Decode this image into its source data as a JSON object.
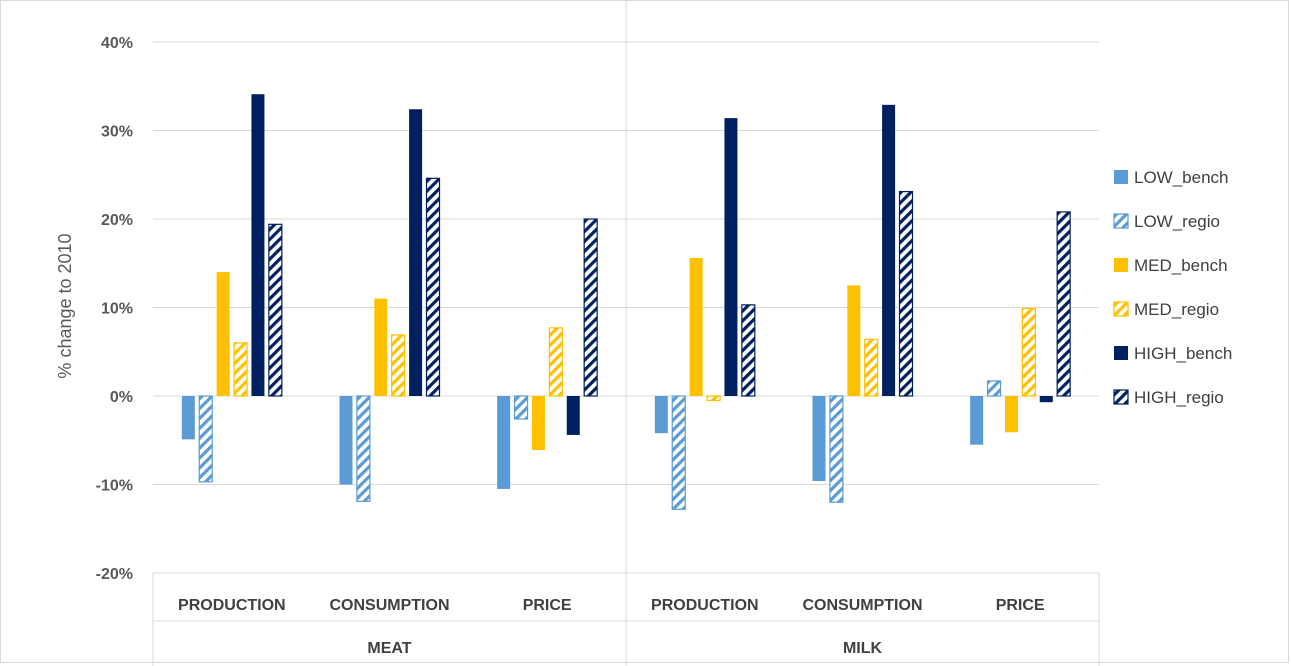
{
  "chart_data": {
    "type": "bar",
    "ylabel": "% change to 2010",
    "xlabel": "",
    "title": "",
    "ylim": [
      -20,
      40
    ],
    "y_ticks": [
      40,
      30,
      20,
      10,
      0,
      -10,
      -20
    ],
    "y_tick_labels": [
      "40%",
      "30%",
      "20%",
      "10%",
      "0%",
      "-10%",
      "-20%"
    ],
    "groups": [
      {
        "label": "MEAT",
        "categories": [
          "PRODUCTION",
          "CONSUMPTION",
          "PRICE"
        ]
      },
      {
        "label": "MILK",
        "categories": [
          "PRODUCTION",
          "CONSUMPTION",
          "PRICE"
        ]
      }
    ],
    "categories": [
      "MEAT PRODUCTION",
      "MEAT CONSUMPTION",
      "MEAT PRICE",
      "MILK PRODUCTION",
      "MILK CONSUMPTION",
      "MILK PRICE"
    ],
    "series": [
      {
        "name": "LOW_bench",
        "color": "#5b9bd5",
        "pattern": "solid",
        "values": [
          -4.9,
          -10.0,
          -10.5,
          -4.2,
          -9.6,
          -5.5
        ]
      },
      {
        "name": "LOW_regio",
        "color": "#5b9bd5",
        "pattern": "hatched",
        "values": [
          -9.7,
          -11.9,
          -2.6,
          -12.8,
          -12.0,
          1.7
        ]
      },
      {
        "name": "MED_bench",
        "color": "#ffc000",
        "pattern": "solid",
        "values": [
          14.0,
          11.0,
          -6.1,
          15.6,
          12.5,
          -4.1
        ]
      },
      {
        "name": "MED_regio",
        "color": "#ffc000",
        "pattern": "hatched",
        "values": [
          6.0,
          6.9,
          7.7,
          -0.5,
          6.4,
          9.9
        ]
      },
      {
        "name": "HIGH_bench",
        "color": "#002060",
        "pattern": "solid",
        "values": [
          34.1,
          32.4,
          -4.4,
          31.4,
          32.9,
          -0.7
        ]
      },
      {
        "name": "HIGH_regio",
        "color": "#002060",
        "pattern": "hatched",
        "values": [
          19.4,
          24.6,
          20.0,
          10.3,
          23.1,
          20.8
        ]
      }
    ],
    "grid": true,
    "legend_position": "right"
  }
}
